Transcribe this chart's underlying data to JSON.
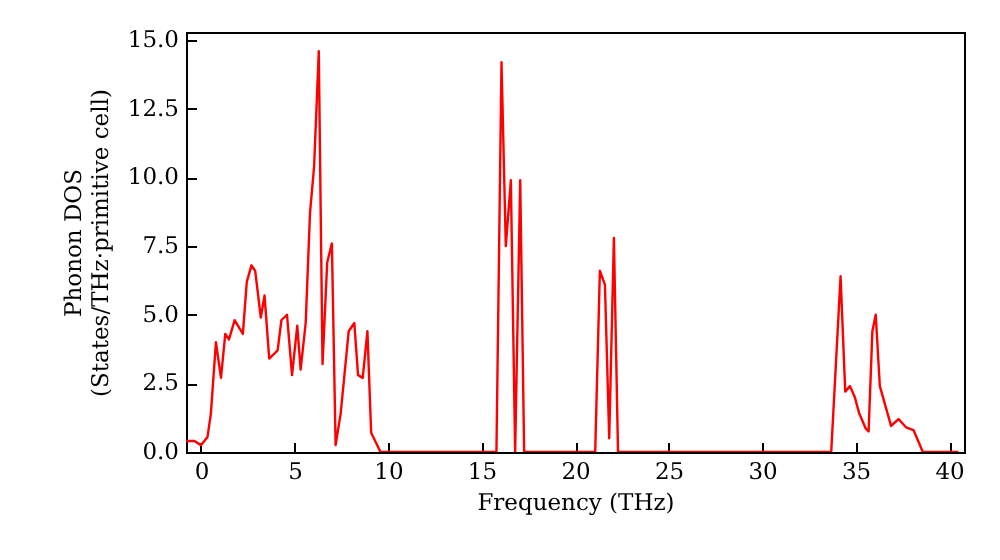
{
  "chart_data": {
    "type": "line",
    "xlabel": "Frequency (THz)",
    "ylabel": "Phonon DOS\n(States/THz·primitive cell)",
    "x": [
      -0.8,
      -0.35,
      0,
      0.35,
      0.53,
      0.8,
      1.07,
      1.3,
      1.5,
      1.8,
      2.24,
      2.45,
      2.7,
      2.9,
      3.2,
      3.4,
      3.65,
      4.1,
      4.3,
      4.6,
      4.87,
      5.15,
      5.33,
      5.6,
      5.83,
      6.05,
      6.3,
      6.5,
      6.75,
      7.0,
      7.2,
      7.47,
      7.9,
      8.2,
      8.4,
      8.65,
      8.9,
      9.1,
      9.6,
      15.8,
      16.07,
      16.3,
      16.57,
      16.8,
      17.07,
      17.28,
      21.08,
      21.33,
      21.6,
      21.83,
      22.08,
      22.3,
      33.7,
      34.2,
      34.45,
      34.7,
      34.96,
      35.2,
      35.55,
      35.7,
      35.9,
      36.08,
      36.3,
      36.9,
      37.3,
      37.7,
      38.1,
      38.6,
      40.5
    ],
    "series": [
      {
        "color": "#ff0000",
        "values": [
          0.4,
          0.4,
          0.25,
          0.55,
          1.4,
          4.0,
          2.7,
          4.3,
          4.1,
          4.8,
          4.3,
          6.2,
          6.8,
          6.6,
          4.9,
          5.7,
          3.4,
          3.7,
          4.8,
          5.0,
          2.8,
          4.6,
          3.0,
          4.7,
          8.7,
          10.4,
          14.6,
          3.2,
          6.9,
          7.6,
          0.25,
          1.4,
          4.4,
          4.7,
          2.8,
          2.7,
          4.4,
          0.7,
          0,
          0,
          14.2,
          7.5,
          9.9,
          0,
          9.9,
          0,
          0,
          6.6,
          6.1,
          0.5,
          7.8,
          0,
          0,
          6.4,
          2.2,
          2.4,
          2.0,
          1.4,
          0.85,
          0.75,
          4.4,
          5.0,
          2.4,
          0.95,
          1.2,
          0.9,
          0.8,
          0,
          0
        ]
      }
    ],
    "xlim": [
      -0.8,
      40.8
    ],
    "xticks": [
      0,
      5,
      10,
      15,
      20,
      25,
      30,
      35,
      40
    ],
    "ylim": [
      0,
      15.3
    ],
    "yticks": [
      {
        "value": 0,
        "label": "0.0"
      },
      {
        "value": 2.5,
        "label": "2.5"
      },
      {
        "value": 5,
        "label": "5.0"
      },
      {
        "value": 7.5,
        "label": "7.5"
      },
      {
        "value": 10,
        "label": "10.0"
      },
      {
        "value": 12.5,
        "label": "12.5"
      },
      {
        "value": 15,
        "label": "15.0"
      }
    ],
    "line_style": "solid"
  }
}
